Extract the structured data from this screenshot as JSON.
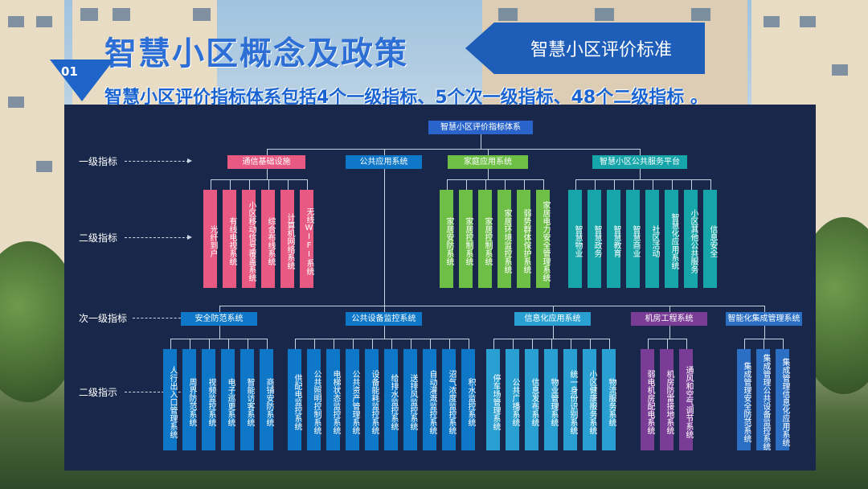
{
  "header": {
    "title": "智慧小区概念及政策",
    "number": "01",
    "standard_box": "智慧小区评价标准",
    "subtitle": "智慧小区评价指标体系包括4个一级指标、5个次一级指标、48个二级指标 。"
  },
  "diagram": {
    "root": "智慧小区评价指标体系",
    "level_labels": {
      "l1": "一级指标",
      "l2a": "二级指标",
      "l1b": "次一级指标",
      "l2b": "二级指示"
    },
    "top_groups": [
      {
        "name": "通信基础设施",
        "color": "#e85a82",
        "items": [
          "光纤到户",
          "有线电视系统",
          "小区移动信号覆盖系统",
          "综合布线系统",
          "计算机网络系统",
          "无线WIFI系统"
        ]
      },
      {
        "name": "公共应用系统",
        "color": "#0f77c8",
        "items": []
      },
      {
        "name": "家庭应用系统",
        "color": "#6dbf45",
        "items": [
          "家居安防系统",
          "家居控制系统",
          "家居控制系统",
          "家居环境监控系统",
          "弱势群体保护系统",
          "家居电力安全管理系统"
        ]
      },
      {
        "name": "智慧小区公共服务平台",
        "color": "#16a5a9",
        "items": [
          "智慧物业",
          "智慧政务",
          "智慧教育",
          "智慧商业",
          "社区活动",
          "智慧化应用系统",
          "小区其他公共服务",
          "信息安全"
        ]
      }
    ],
    "sub_groups": [
      {
        "name": "安全防范系统",
        "color": "#0f77c8",
        "items": [
          "人行出入口管理系统",
          "周界防范系统",
          "视频监控系统",
          "电子巡更系统",
          "智能访客系统",
          "商铺安防系统"
        ]
      },
      {
        "name": "公共设备监控系统",
        "color": "#0f77c8",
        "items": [
          "供配电监控系统",
          "公共照明控制系统",
          "电梯状态监控系统",
          "公共资产管理系统",
          "设备能耗监控系统",
          "给排水监控系统",
          "送排风监控系统",
          "自动灌溉监控系统",
          "沼气浓度监控系统",
          "积水监控系统"
        ]
      },
      {
        "name": "信息化应用系统",
        "color": "#2aa0d2",
        "items": [
          "停车场管理系统",
          "公共广播系统",
          "信息发布系统",
          "物业管理系统",
          "统一身份识别系统",
          "小区健康服务系统",
          "物流服务系统"
        ]
      },
      {
        "name": "机房工程系统",
        "color": "#7a3d96",
        "items": [
          "弱电机房配电系统",
          "机房防雷接地系统",
          "通风和空气调节系统"
        ]
      },
      {
        "name": "智能化集成管理系统",
        "color": "#2b6fc5",
        "items": [
          "集成管理安全防范系统",
          "集成管理公共设备监控系统",
          "集成管理信息化应用系统"
        ]
      }
    ]
  }
}
